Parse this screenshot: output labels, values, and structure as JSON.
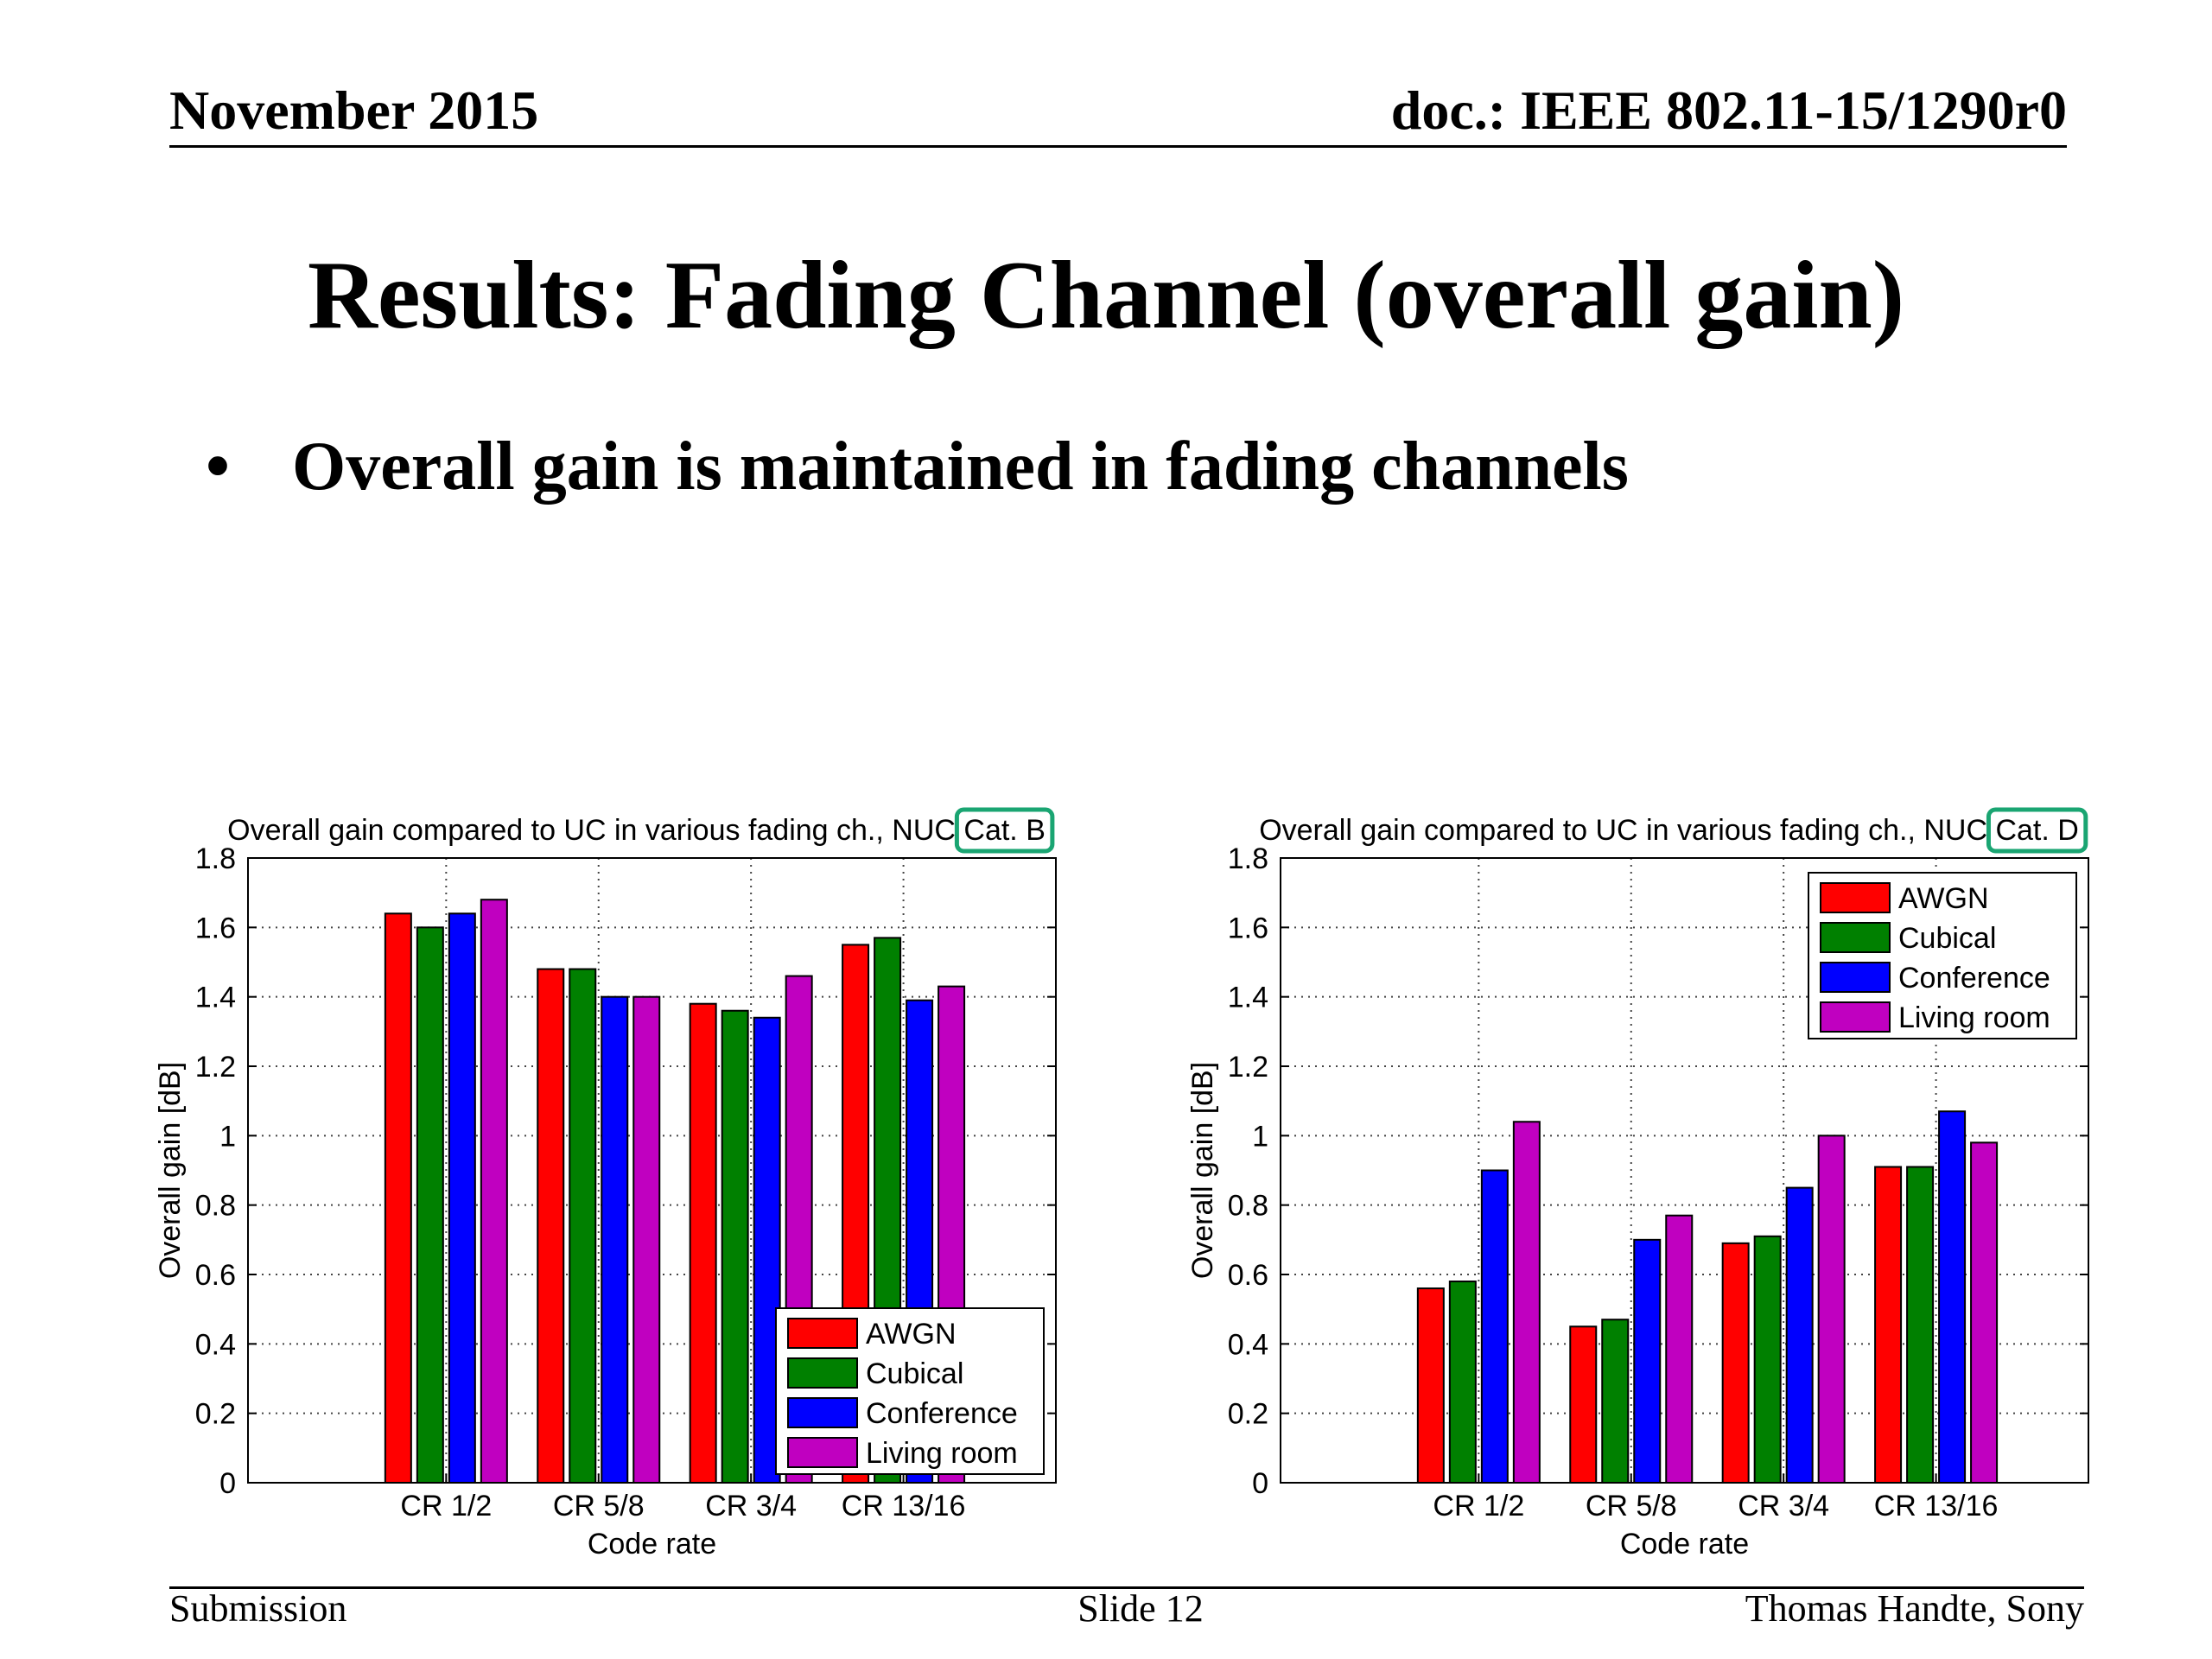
{
  "header": {
    "date": "November 2015",
    "doc_id": "doc.: IEEE 802.11-15/1290r0"
  },
  "slide": {
    "title": "Results: Fading Channel (overall gain)",
    "bullet": "Overall gain is maintained in fading channels"
  },
  "footer": {
    "left": "Submission",
    "center": "Slide 12",
    "right": "Thomas Handte, Sony"
  },
  "colors": {
    "AWGN": "#ff0000",
    "Cubical": "#008000",
    "Conference": "#0000ff",
    "Living room": "#c000c0",
    "highlight": "#1aa572"
  },
  "chart_data": [
    {
      "type": "bar",
      "title": "Overall gain compared to UC in various fading ch., NUC Cat. B",
      "title_prefix": "Overall gain compared to UC in various fading ch., NUC",
      "title_highlight": "Cat. B",
      "xlabel": "Code rate",
      "ylabel": "Overall gain [dB]",
      "ylim": [
        0,
        1.8
      ],
      "yticks": [
        "0",
        "0.2",
        "0.4",
        "0.6",
        "0.8",
        "1",
        "1.2",
        "1.4",
        "1.6",
        "1.8"
      ],
      "grid": true,
      "legend_position": "bottom-right",
      "categories": [
        "CR 1/2",
        "CR 5/8",
        "CR 3/4",
        "CR 13/16"
      ],
      "series": [
        {
          "name": "AWGN",
          "values": [
            1.64,
            1.48,
            1.38,
            1.55
          ]
        },
        {
          "name": "Cubical",
          "values": [
            1.6,
            1.48,
            1.36,
            1.57
          ]
        },
        {
          "name": "Conference",
          "values": [
            1.64,
            1.4,
            1.34,
            1.39
          ]
        },
        {
          "name": "Living room",
          "values": [
            1.68,
            1.4,
            1.46,
            1.43
          ]
        }
      ]
    },
    {
      "type": "bar",
      "title": "Overall gain compared to UC in various fading ch., NUC Cat. D",
      "title_prefix": "Overall gain compared to UC in various fading ch., NUC",
      "title_highlight": "Cat. D",
      "xlabel": "Code rate",
      "ylabel": "Overall gain [dB]",
      "ylim": [
        0,
        1.8
      ],
      "yticks": [
        "0",
        "0.2",
        "0.4",
        "0.6",
        "0.8",
        "1",
        "1.2",
        "1.4",
        "1.6",
        "1.8"
      ],
      "grid": true,
      "legend_position": "top-right",
      "categories": [
        "CR 1/2",
        "CR 5/8",
        "CR 3/4",
        "CR 13/16"
      ],
      "series": [
        {
          "name": "AWGN",
          "values": [
            0.56,
            0.45,
            0.69,
            0.91
          ]
        },
        {
          "name": "Cubical",
          "values": [
            0.58,
            0.47,
            0.71,
            0.91
          ]
        },
        {
          "name": "Conference",
          "values": [
            0.9,
            0.7,
            0.85,
            1.07
          ]
        },
        {
          "name": "Living room",
          "values": [
            1.04,
            0.77,
            1.0,
            0.98
          ]
        }
      ]
    }
  ]
}
